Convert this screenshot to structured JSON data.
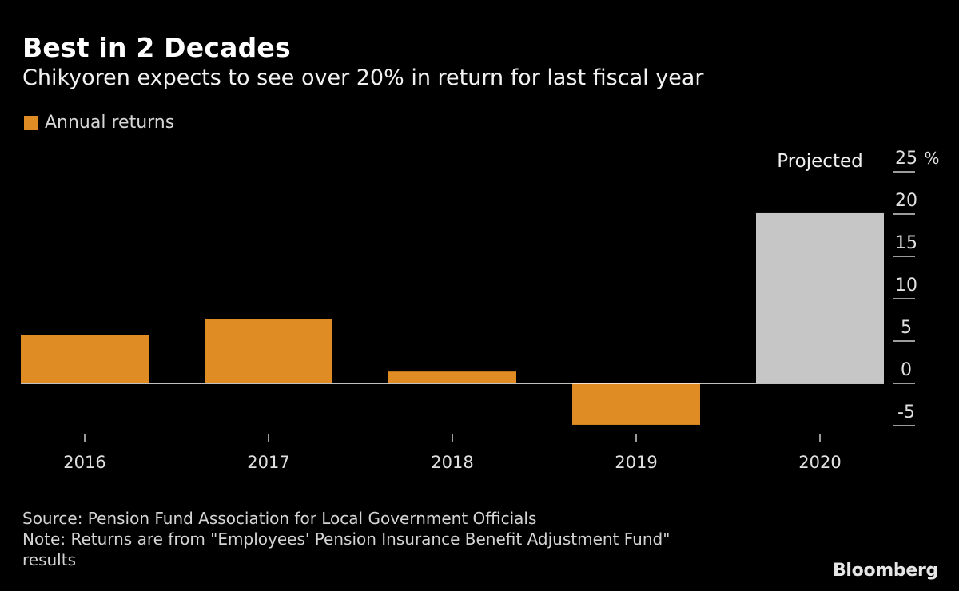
{
  "header": {
    "title": "Best in 2 Decades",
    "subtitle": "Chikyoren expects to see over 20% in return for last fiscal year"
  },
  "legend": {
    "label": "Annual returns",
    "color": "#df8c25"
  },
  "colors": {
    "bar": "#df8c25",
    "projected_bar": "#c6c6c6",
    "axis": "#ffffff",
    "tick_label": "#e0e0e0"
  },
  "chart_data": {
    "type": "bar",
    "title": "Best in 2 Decades",
    "subtitle": "Chikyoren expects to see over 20% in return for last fiscal year",
    "categories": [
      "2016",
      "2017",
      "2018",
      "2019",
      "2020"
    ],
    "series": [
      {
        "name": "Annual returns",
        "values": [
          5.7,
          7.6,
          1.4,
          -4.9,
          20.1
        ],
        "projected": [
          false,
          false,
          false,
          false,
          true
        ]
      }
    ],
    "annotations": [
      {
        "category": "2020",
        "text": "Projected"
      }
    ],
    "y_axis": {
      "ticks": [
        25,
        20,
        15,
        10,
        5,
        0,
        -5
      ],
      "unit": "%",
      "ylim": [
        -5,
        25
      ],
      "position": "right"
    },
    "xlabel": "",
    "ylabel": "",
    "grid": false,
    "legend_position": "top-left"
  },
  "footer": {
    "source": "Source: Pension Fund Association for Local Government Officials",
    "note_line1": "Note: Returns are from \"Employees' Pension Insurance Benefit Adjustment Fund\"",
    "note_line2": "results"
  },
  "branding": {
    "logo_text": "Bloomberg"
  }
}
